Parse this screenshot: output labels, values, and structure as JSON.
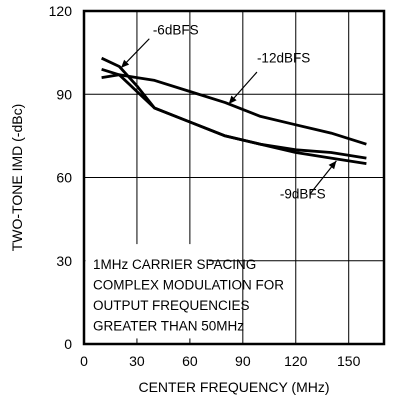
{
  "chart_data": {
    "type": "line",
    "xlabel": "CENTER FREQUENCY (MHz)",
    "ylabel": "TWO-TONE IMD (-dBc)",
    "xlim": [
      0,
      170
    ],
    "ylim": [
      0,
      120
    ],
    "xticks": [
      0,
      30,
      60,
      90,
      120,
      150
    ],
    "yticks": [
      0,
      30,
      60,
      90,
      120
    ],
    "grid": true,
    "series": [
      {
        "name": "-6dBFS",
        "x": [
          10,
          20,
          30,
          40,
          60,
          80,
          100,
          120,
          140,
          160
        ],
        "y": [
          103,
          100,
          93,
          85,
          80,
          75,
          72,
          69,
          67,
          65
        ]
      },
      {
        "name": "-12dBFS",
        "x": [
          10,
          20,
          30,
          40,
          60,
          80,
          100,
          120,
          140,
          160
        ],
        "y": [
          96,
          97,
          96,
          95,
          91,
          87,
          82,
          79,
          76,
          72
        ]
      },
      {
        "name": "-9dBFS",
        "x": [
          10,
          20,
          30,
          40,
          60,
          80,
          100,
          120,
          140,
          160
        ],
        "y": [
          99,
          97,
          91,
          85,
          80,
          75,
          72,
          70,
          69,
          67
        ]
      }
    ],
    "annotations": [
      "-6dBFS",
      "-12dBFS",
      "-9dBFS"
    ],
    "note_lines": [
      "1MHz CARRIER SPACING",
      "COMPLEX MODULATION FOR",
      "OUTPUT FREQUENCIES",
      "GREATER THAN 50MHz"
    ]
  }
}
